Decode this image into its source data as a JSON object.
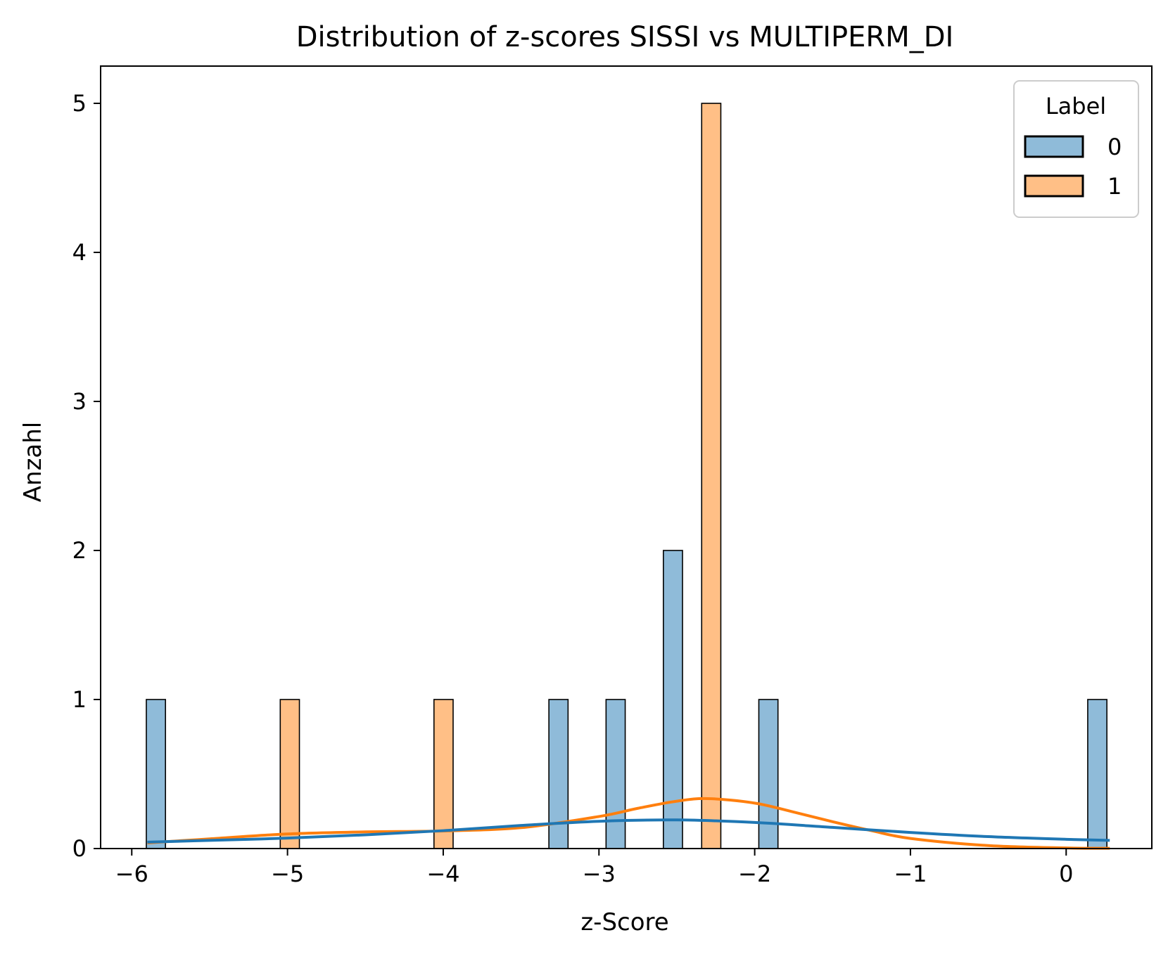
{
  "chart_data": {
    "type": "bar",
    "title": "Distribution of z-scores SISSI vs MULTIPERM_DI",
    "xlabel": "z-Score",
    "ylabel": "Anzahl",
    "xlim": [
      -6.2,
      0.55
    ],
    "ylim": [
      0,
      5.25
    ],
    "xticks": [
      -6,
      -5,
      -4,
      -3,
      -2,
      -1,
      0
    ],
    "xtick_labels": [
      "−6",
      "−5",
      "−4",
      "−3",
      "−2",
      "−1",
      "0"
    ],
    "yticks": [
      0,
      1,
      2,
      3,
      4,
      5
    ],
    "ytick_labels": [
      "0",
      "1",
      "2",
      "3",
      "4",
      "5"
    ],
    "grid": false,
    "legend": {
      "title": "Label",
      "placement": "top-right",
      "entries": [
        {
          "label": "0",
          "color": "#1f77b4"
        },
        {
          "label": "1",
          "color": "#ff7f0e"
        }
      ]
    },
    "bar_width": 0.123,
    "series": [
      {
        "name": "0",
        "color": "#1f77b4",
        "bars": [
          {
            "x": -5.845,
            "count": 1
          },
          {
            "x": -3.26,
            "count": 1
          },
          {
            "x": -2.893,
            "count": 1
          },
          {
            "x": -2.525,
            "count": 2
          },
          {
            "x": -1.912,
            "count": 1
          },
          {
            "x": 0.2,
            "count": 1
          }
        ],
        "kde": {
          "x": [
            -5.9,
            -5.5,
            -5.0,
            -4.5,
            -4.0,
            -3.5,
            -3.0,
            -2.5,
            -2.0,
            -1.5,
            -1.0,
            -0.5,
            0.0,
            0.28
          ],
          "y": [
            0.043,
            0.055,
            0.07,
            0.092,
            0.12,
            0.155,
            0.183,
            0.192,
            0.175,
            0.142,
            0.108,
            0.08,
            0.062,
            0.055
          ]
        }
      },
      {
        "name": "1",
        "color": "#ff7f0e",
        "bars": [
          {
            "x": -4.985,
            "count": 1
          },
          {
            "x": -3.998,
            "count": 1
          },
          {
            "x": -2.279,
            "count": 5
          }
        ],
        "kde": {
          "x": [
            -5.9,
            -5.5,
            -5.0,
            -4.5,
            -4.0,
            -3.5,
            -3.0,
            -2.75,
            -2.5,
            -2.3,
            -2.0,
            -1.75,
            -1.5,
            -1.25,
            -1.0,
            -0.5,
            0.0,
            0.28
          ],
          "y": [
            0.038,
            0.065,
            0.098,
            0.112,
            0.118,
            0.14,
            0.215,
            0.27,
            0.318,
            0.335,
            0.305,
            0.245,
            0.18,
            0.12,
            0.068,
            0.02,
            0.004,
            0.002
          ]
        }
      }
    ]
  }
}
